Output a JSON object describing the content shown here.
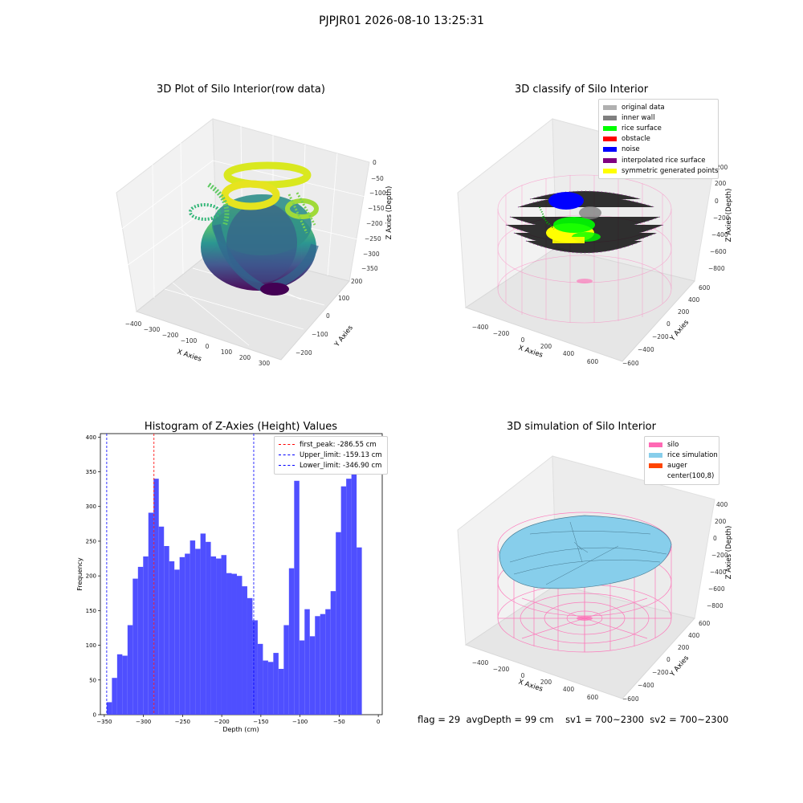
{
  "page": {
    "suptitle": "PJPJR01 2026-08-10 13:25:31",
    "status": {
      "flag": "flag = 29",
      "avg_depth": "avgDepth = 99 cm",
      "sv1": "sv1 = 700~2300",
      "sv2": "sv2 = 700~2300"
    }
  },
  "colors": {
    "viridis_low": "#440154",
    "viridis_mid": "#21918c",
    "viridis_high": "#fde725",
    "silo_pink": "#ff69b4",
    "rice_blue": "#87ceeb",
    "hist_bar": "#4f4fff",
    "peak_line": "#ff0000",
    "limit_line": "#0000ff"
  },
  "chart_data": [
    {
      "type": "scatter",
      "kind": "3d",
      "title": "3D Plot of Silo Interior(row data)",
      "xlabel": "X Axies",
      "ylabel": "Y Axies",
      "zlabel": "Z Axies (Depth)",
      "xticks": [
        "−400",
        "−300",
        "−200",
        "−100",
        "0",
        "100",
        "200",
        "300"
      ],
      "yticks": [
        "−200",
        "−100",
        "0",
        "100",
        "200"
      ],
      "zticks": [
        "0",
        "−50",
        "−100",
        "−150",
        "−200",
        "−250",
        "−300",
        "−350"
      ],
      "xlim": [
        -450,
        320
      ],
      "ylim": [
        -250,
        260
      ],
      "zlim": [
        -370,
        10
      ],
      "colormap": "viridis"
    },
    {
      "type": "scatter",
      "kind": "3d",
      "title": "3D classify of Silo Interior",
      "xlabel": "X Axies",
      "ylabel": "Y Axies",
      "zlabel": "Z Axies (Depth)",
      "xticks": [
        "−400",
        "−200",
        "0",
        "200",
        "400",
        "600"
      ],
      "yticks": [
        "−600",
        "−400",
        "−200",
        "0",
        "200",
        "400",
        "600"
      ],
      "zticks": [
        "200",
        "0",
        "−200",
        "−400",
        "−600",
        "−800"
      ],
      "legend_position": "top-right",
      "legend": [
        {
          "label": "original data",
          "color": "#b0b0b0"
        },
        {
          "label": "inner wall",
          "color": "#808080"
        },
        {
          "label": "rice surface",
          "color": "#00ff00"
        },
        {
          "label": "obstacle",
          "color": "#ff0000"
        },
        {
          "label": "noise",
          "color": "#0000ff"
        },
        {
          "label": "interpolated rice surface",
          "color": "#800080"
        },
        {
          "label": "symmetric generated points",
          "color": "#ffff00"
        }
      ]
    },
    {
      "type": "bar",
      "kind": "histogram",
      "title": "Histogram of Z-Axies (Height) Values",
      "xlabel": "Depth (cm)",
      "ylabel": "Frequency",
      "xlim": [
        -355,
        5
      ],
      "ylim": [
        0,
        405
      ],
      "xticks": [
        -350,
        -300,
        -250,
        -200,
        -150,
        -100,
        -50,
        0
      ],
      "yticks": [
        0,
        50,
        100,
        150,
        200,
        250,
        300,
        350,
        400
      ],
      "bin_start": -346.9,
      "bin_width": 6.65,
      "values": [
        18,
        53,
        87,
        85,
        129,
        196,
        213,
        228,
        291,
        340,
        271,
        243,
        221,
        209,
        227,
        232,
        251,
        239,
        261,
        249,
        228,
        225,
        230,
        204,
        203,
        200,
        185,
        168,
        136,
        102,
        78,
        76,
        89,
        66,
        129,
        211,
        337,
        107,
        152,
        113,
        142,
        145,
        152,
        178,
        263,
        329,
        340,
        381,
        241
      ],
      "vlines": [
        {
          "label": "first_peak: -286.55 cm",
          "x": -286.55,
          "color": "#ff0000"
        },
        {
          "label": "Upper_limit: -159.13 cm",
          "x": -159.13,
          "color": "#0000ff"
        },
        {
          "label": "Lower_limit: -346.90 cm",
          "x": -346.9,
          "color": "#0000ff"
        }
      ],
      "legend_position": "top-right"
    },
    {
      "type": "area",
      "kind": "3d-surface",
      "title": "3D simulation of Silo Interior",
      "xlabel": "X Axies",
      "ylabel": "Y Axies",
      "zlabel": "Z Axies (Depth)",
      "xticks": [
        "−400",
        "−200",
        "0",
        "200",
        "400",
        "600"
      ],
      "yticks": [
        "−600",
        "−400",
        "−200",
        "0",
        "200",
        "400",
        "600"
      ],
      "zticks": [
        "400",
        "200",
        "0",
        "−200",
        "−400",
        "−600",
        "−800"
      ],
      "legend_position": "top-right",
      "legend": [
        {
          "label": "silo",
          "color": "#ff69b4"
        },
        {
          "label": "rice simulation",
          "color": "#87ceeb"
        },
        {
          "label": "auger",
          "color": "#ff4500"
        },
        {
          "label": "center(100,8)",
          "color": "#ffffff"
        }
      ]
    }
  ]
}
